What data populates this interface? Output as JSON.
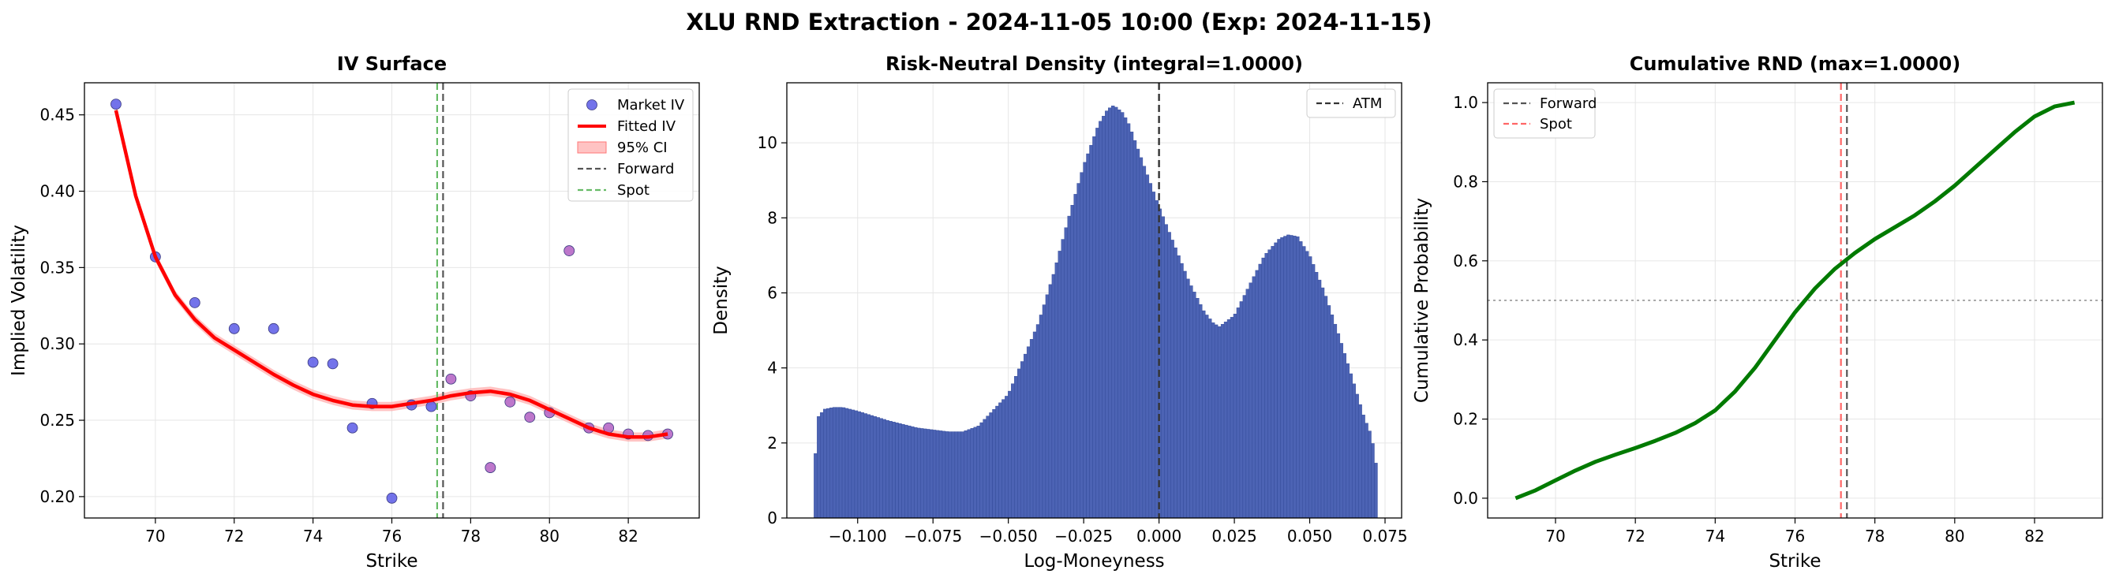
{
  "figure": {
    "title": "XLU RND Extraction - 2024-11-05 10:00 (Exp: 2024-11-15)"
  },
  "colors": {
    "market": "#5b5be6",
    "market_alt": "#b15fc2",
    "fitted": "#ff0000",
    "ci": "#ffaaaa",
    "forward": "#555555",
    "spot_iv": "#66bb66",
    "spot_cdf": "#ff6666",
    "bars": "#4c63b4",
    "cdf": "#007a00",
    "grid": "#e6e6e6"
  },
  "chart_data": [
    {
      "type": "scatter",
      "title": "IV Surface",
      "xlabel": "Strike",
      "ylabel": "Implied Volatility",
      "xlim": [
        68.2,
        83.8
      ],
      "ylim": [
        0.186,
        0.471
      ],
      "xticks": [
        "70",
        "72",
        "74",
        "76",
        "78",
        "80",
        "82"
      ],
      "xtick_values": [
        70,
        72,
        74,
        76,
        78,
        80,
        82
      ],
      "yticks": [
        "0.20",
        "0.25",
        "0.30",
        "0.35",
        "0.40",
        "0.45"
      ],
      "ytick_values": [
        0.2,
        0.25,
        0.3,
        0.35,
        0.4,
        0.45
      ],
      "grid": true,
      "legend_position": "top-right",
      "legend": [
        "Market IV",
        "Fitted IV",
        "95% CI",
        "Forward",
        "Spot"
      ],
      "market_iv": [
        {
          "x": 69,
          "y": 0.457,
          "alt": false
        },
        {
          "x": 70,
          "y": 0.357,
          "alt": false
        },
        {
          "x": 71,
          "y": 0.327,
          "alt": false
        },
        {
          "x": 72,
          "y": 0.31,
          "alt": false
        },
        {
          "x": 73,
          "y": 0.31,
          "alt": false
        },
        {
          "x": 74,
          "y": 0.288,
          "alt": false
        },
        {
          "x": 74.5,
          "y": 0.287,
          "alt": false
        },
        {
          "x": 75,
          "y": 0.245,
          "alt": false
        },
        {
          "x": 75.5,
          "y": 0.261,
          "alt": false
        },
        {
          "x": 76,
          "y": 0.199,
          "alt": false
        },
        {
          "x": 76.5,
          "y": 0.26,
          "alt": false
        },
        {
          "x": 77,
          "y": 0.259,
          "alt": false
        },
        {
          "x": 77.5,
          "y": 0.277,
          "alt": true
        },
        {
          "x": 78,
          "y": 0.266,
          "alt": true
        },
        {
          "x": 78.5,
          "y": 0.219,
          "alt": true
        },
        {
          "x": 79,
          "y": 0.262,
          "alt": true
        },
        {
          "x": 79.5,
          "y": 0.252,
          "alt": true
        },
        {
          "x": 80,
          "y": 0.255,
          "alt": true
        },
        {
          "x": 80.5,
          "y": 0.361,
          "alt": true
        },
        {
          "x": 81,
          "y": 0.245,
          "alt": true
        },
        {
          "x": 81.5,
          "y": 0.245,
          "alt": true
        },
        {
          "x": 82,
          "y": 0.241,
          "alt": true
        },
        {
          "x": 82.5,
          "y": 0.24,
          "alt": true
        },
        {
          "x": 83,
          "y": 0.241,
          "alt": true
        }
      ],
      "fitted_iv": {
        "x": [
          69,
          69.5,
          70,
          70.5,
          71,
          71.5,
          72,
          72.5,
          73,
          73.5,
          74,
          74.5,
          75,
          75.5,
          76,
          76.5,
          77,
          77.5,
          78,
          78.5,
          79,
          79.5,
          80,
          80.5,
          81,
          81.5,
          82,
          82.5,
          83
        ],
        "y": [
          0.453,
          0.397,
          0.357,
          0.332,
          0.316,
          0.304,
          0.296,
          0.288,
          0.28,
          0.273,
          0.267,
          0.263,
          0.26,
          0.259,
          0.259,
          0.261,
          0.263,
          0.266,
          0.268,
          0.269,
          0.267,
          0.263,
          0.257,
          0.251,
          0.245,
          0.241,
          0.239,
          0.239,
          0.241
        ]
      },
      "ci_halfwidth": 0.003,
      "forward": 77.3,
      "spot": 77.15
    },
    {
      "type": "bar",
      "title": "Risk-Neutral Density (integral=1.0000)",
      "xlabel": "Log-Moneyness",
      "ylabel": "Density",
      "xlim": [
        -0.1235,
        0.0805
      ],
      "ylim": [
        0,
        11.6
      ],
      "xticks": [
        "−0.100",
        "−0.075",
        "−0.050",
        "−0.025",
        "0.000",
        "0.025",
        "0.050",
        "0.075"
      ],
      "xtick_values": [
        -0.1,
        -0.075,
        -0.05,
        -0.025,
        0,
        0.025,
        0.05,
        0.075
      ],
      "yticks": [
        "0",
        "2",
        "4",
        "6",
        "8",
        "10"
      ],
      "ytick_values": [
        0,
        2,
        4,
        6,
        8,
        10
      ],
      "grid": true,
      "legend_position": "top-right",
      "legend": [
        "ATM"
      ],
      "x_range": [
        -0.1145,
        0.0725
      ],
      "bin_count": 180,
      "density_points": {
        "x": [
          -0.1145,
          -0.113,
          -0.111,
          -0.108,
          -0.105,
          -0.1,
          -0.09,
          -0.08,
          -0.07,
          -0.065,
          -0.06,
          -0.05,
          -0.04,
          -0.035,
          -0.03,
          -0.025,
          -0.02,
          -0.017,
          -0.015,
          -0.012,
          -0.01,
          -0.005,
          0,
          0.005,
          0.01,
          0.015,
          0.018,
          0.02,
          0.025,
          0.03,
          0.035,
          0.04,
          0.043,
          0.046,
          0.05,
          0.055,
          0.06,
          0.065,
          0.068,
          0.07,
          0.0715,
          0.0725
        ],
        "y": [
          1.2,
          2.7,
          2.9,
          2.95,
          2.95,
          2.85,
          2.6,
          2.4,
          2.3,
          2.3,
          2.45,
          3.3,
          5.2,
          6.5,
          8.0,
          9.4,
          10.5,
          10.9,
          11.0,
          10.8,
          10.5,
          9.4,
          8.3,
          7.3,
          6.3,
          5.5,
          5.2,
          5.1,
          5.4,
          6.2,
          7.0,
          7.45,
          7.55,
          7.5,
          7.0,
          6.0,
          4.8,
          3.5,
          2.7,
          2.3,
          1.8,
          1.1
        ]
      },
      "atm": 0.0
    },
    {
      "type": "line",
      "title": "Cumulative RND (max=1.0000)",
      "xlabel": "Strike",
      "ylabel": "Cumulative Probability",
      "xlim": [
        68.3,
        83.7
      ],
      "ylim": [
        -0.05,
        1.05
      ],
      "xticks": [
        "70",
        "72",
        "74",
        "76",
        "78",
        "80",
        "82"
      ],
      "xtick_values": [
        70,
        72,
        74,
        76,
        78,
        80,
        82
      ],
      "yticks": [
        "0.0",
        "0.2",
        "0.4",
        "0.6",
        "0.8",
        "1.0"
      ],
      "ytick_values": [
        0.0,
        0.2,
        0.4,
        0.6,
        0.8,
        1.0
      ],
      "grid": true,
      "legend_position": "top-left",
      "legend": [
        "Forward",
        "Spot"
      ],
      "cdf": {
        "x": [
          69,
          69.5,
          70,
          70.5,
          71,
          71.5,
          72,
          72.5,
          73,
          73.5,
          74,
          74.5,
          75,
          75.5,
          76,
          76.5,
          77,
          77.5,
          78,
          78.5,
          79,
          79.5,
          80,
          80.5,
          81,
          81.5,
          82,
          82.5,
          83
        ],
        "y": [
          0.0,
          0.02,
          0.045,
          0.07,
          0.092,
          0.11,
          0.127,
          0.145,
          0.165,
          0.19,
          0.222,
          0.27,
          0.33,
          0.4,
          0.47,
          0.53,
          0.58,
          0.62,
          0.655,
          0.685,
          0.715,
          0.75,
          0.79,
          0.835,
          0.88,
          0.925,
          0.965,
          0.99,
          1.0
        ]
      },
      "reference_line": 0.5,
      "forward": 77.3,
      "spot": 77.15
    }
  ]
}
